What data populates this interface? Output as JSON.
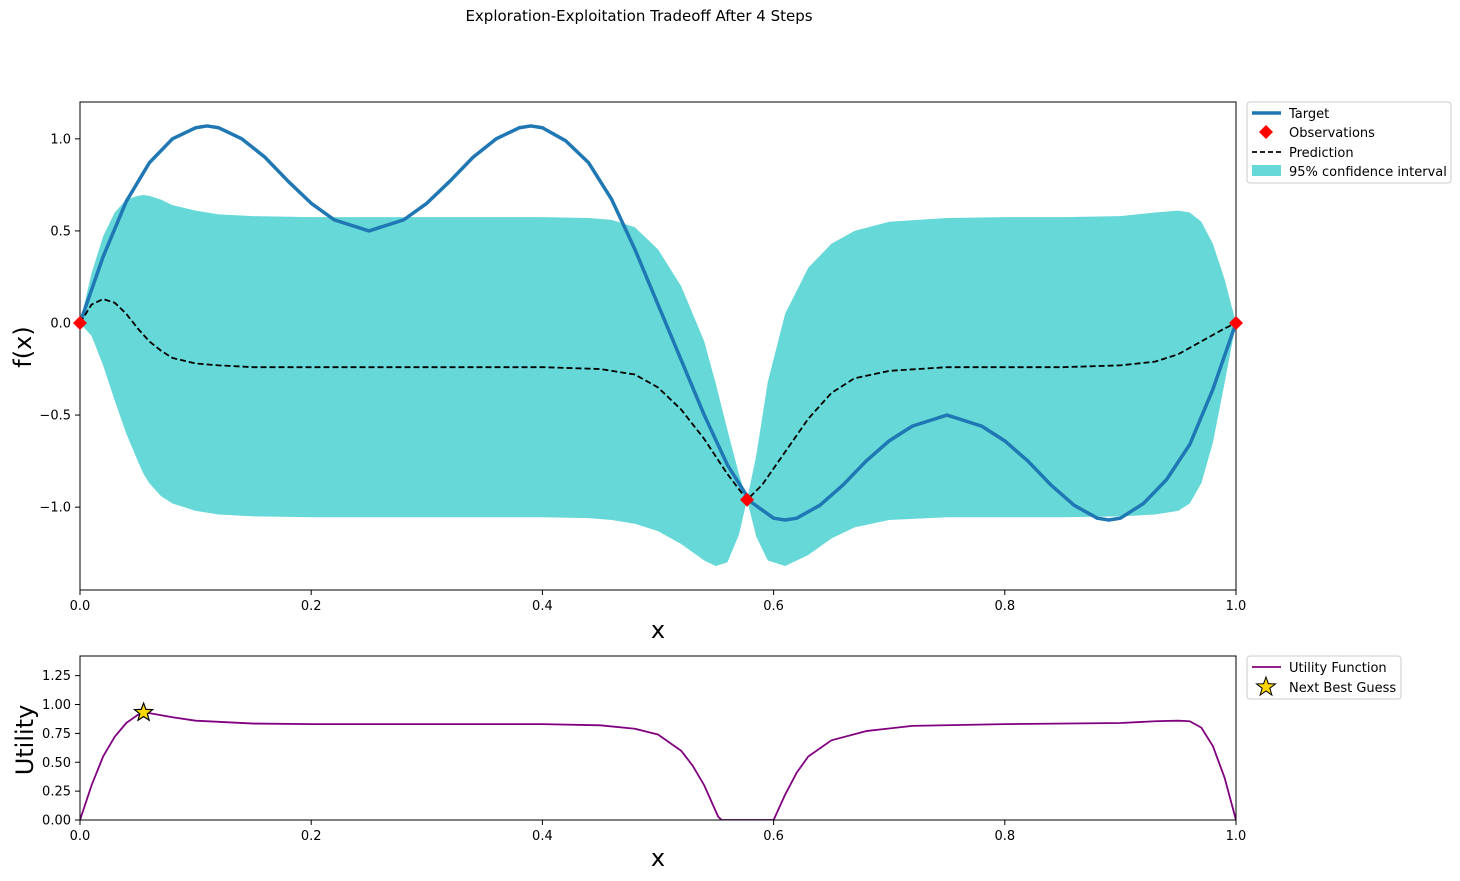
{
  "figure": {
    "title": "Exploration-Exploitation Tradeoff After 4 Steps"
  },
  "chart_data": [
    {
      "type": "line",
      "xlabel": "x",
      "ylabel": "f(x)",
      "xlim": [
        0,
        1
      ],
      "ylim": [
        -1.45,
        1.2
      ],
      "xticks": [
        0.0,
        0.2,
        0.4,
        0.6,
        0.8,
        1.0
      ],
      "xtick_labels": [
        "0.0",
        "0.2",
        "0.4",
        "0.6",
        "0.8",
        "1.0"
      ],
      "yticks": [
        -1.0,
        -0.5,
        0.0,
        0.5,
        1.0
      ],
      "ytick_labels": [
        "−1.0",
        "−0.5",
        "0.0",
        "0.5",
        "1.0"
      ],
      "grid": false,
      "legend": "outside-top-right",
      "series": [
        {
          "name": "Target",
          "style": "solid",
          "color": "#1f77b4",
          "x": [
            0,
            0.02,
            0.04,
            0.06,
            0.08,
            0.1,
            0.11,
            0.12,
            0.14,
            0.16,
            0.18,
            0.2,
            0.22,
            0.25,
            0.28,
            0.3,
            0.32,
            0.34,
            0.36,
            0.38,
            0.39,
            0.4,
            0.42,
            0.44,
            0.46,
            0.48,
            0.5,
            0.52,
            0.54,
            0.56,
            0.58,
            0.6,
            0.61,
            0.62,
            0.64,
            0.66,
            0.68,
            0.7,
            0.72,
            0.75,
            0.78,
            0.8,
            0.82,
            0.84,
            0.86,
            0.88,
            0.89,
            0.9,
            0.92,
            0.94,
            0.96,
            0.98,
            1.0
          ],
          "y": [
            0,
            0.36,
            0.66,
            0.87,
            1.0,
            1.06,
            1.07,
            1.06,
            1.0,
            0.9,
            0.77,
            0.65,
            0.56,
            0.5,
            0.56,
            0.65,
            0.77,
            0.9,
            1.0,
            1.06,
            1.07,
            1.06,
            0.99,
            0.87,
            0.67,
            0.4,
            0.1,
            -0.2,
            -0.5,
            -0.77,
            -0.97,
            -1.06,
            -1.07,
            -1.06,
            -0.99,
            -0.88,
            -0.75,
            -0.64,
            -0.56,
            -0.5,
            -0.56,
            -0.64,
            -0.75,
            -0.88,
            -0.99,
            -1.06,
            -1.07,
            -1.06,
            -0.98,
            -0.85,
            -0.66,
            -0.36,
            0
          ]
        },
        {
          "name": "Observations",
          "style": "marker-diamond",
          "color": "#ff0000",
          "x": [
            0.0,
            0.577,
            1.0
          ],
          "y": [
            0.0,
            -0.96,
            0.0
          ]
        },
        {
          "name": "Prediction",
          "style": "dashed",
          "color": "#000000",
          "x": [
            0,
            0.01,
            0.02,
            0.03,
            0.04,
            0.05,
            0.06,
            0.07,
            0.08,
            0.1,
            0.12,
            0.15,
            0.2,
            0.3,
            0.4,
            0.45,
            0.48,
            0.5,
            0.52,
            0.54,
            0.56,
            0.577,
            0.59,
            0.61,
            0.63,
            0.65,
            0.67,
            0.7,
            0.75,
            0.8,
            0.85,
            0.9,
            0.93,
            0.95,
            0.97,
            0.99,
            1.0
          ],
          "y": [
            0,
            0.1,
            0.13,
            0.11,
            0.05,
            -0.03,
            -0.1,
            -0.15,
            -0.19,
            -0.22,
            -0.23,
            -0.24,
            -0.24,
            -0.24,
            -0.24,
            -0.25,
            -0.28,
            -0.35,
            -0.47,
            -0.63,
            -0.82,
            -0.96,
            -0.88,
            -0.7,
            -0.52,
            -0.38,
            -0.3,
            -0.26,
            -0.24,
            -0.24,
            -0.24,
            -0.23,
            -0.21,
            -0.17,
            -0.1,
            -0.03,
            0
          ]
        },
        {
          "name": "95% confidence interval",
          "style": "band",
          "color": "#66d8d8",
          "x": [
            0,
            0.01,
            0.02,
            0.03,
            0.04,
            0.05,
            0.055,
            0.06,
            0.07,
            0.08,
            0.1,
            0.12,
            0.15,
            0.2,
            0.3,
            0.4,
            0.44,
            0.46,
            0.48,
            0.5,
            0.52,
            0.54,
            0.55,
            0.56,
            0.57,
            0.577,
            0.585,
            0.595,
            0.61,
            0.63,
            0.65,
            0.67,
            0.7,
            0.75,
            0.8,
            0.85,
            0.9,
            0.93,
            0.95,
            0.96,
            0.97,
            0.98,
            0.99,
            1.0
          ],
          "upper": [
            0,
            0.27,
            0.47,
            0.6,
            0.67,
            0.69,
            0.695,
            0.69,
            0.67,
            0.64,
            0.61,
            0.59,
            0.58,
            0.575,
            0.575,
            0.575,
            0.57,
            0.56,
            0.52,
            0.4,
            0.2,
            -0.1,
            -0.33,
            -0.58,
            -0.82,
            -0.96,
            -0.72,
            -0.32,
            0.05,
            0.3,
            0.43,
            0.5,
            0.55,
            0.57,
            0.575,
            0.575,
            0.58,
            0.6,
            0.61,
            0.6,
            0.55,
            0.43,
            0.24,
            0
          ],
          "lower": [
            0,
            -0.07,
            -0.23,
            -0.42,
            -0.6,
            -0.75,
            -0.82,
            -0.87,
            -0.94,
            -0.98,
            -1.02,
            -1.04,
            -1.05,
            -1.055,
            -1.055,
            -1.055,
            -1.06,
            -1.07,
            -1.09,
            -1.13,
            -1.2,
            -1.29,
            -1.32,
            -1.3,
            -1.15,
            -0.96,
            -1.16,
            -1.29,
            -1.32,
            -1.26,
            -1.17,
            -1.11,
            -1.07,
            -1.055,
            -1.055,
            -1.055,
            -1.05,
            -1.04,
            -1.02,
            -0.98,
            -0.87,
            -0.65,
            -0.33,
            0
          ]
        }
      ]
    },
    {
      "type": "line",
      "xlabel": "x",
      "ylabel": "Utility",
      "xlim": [
        0,
        1
      ],
      "ylim": [
        0,
        1.42
      ],
      "xticks": [
        0.0,
        0.2,
        0.4,
        0.6,
        0.8,
        1.0
      ],
      "xtick_labels": [
        "0.0",
        "0.2",
        "0.4",
        "0.6",
        "0.8",
        "1.0"
      ],
      "yticks": [
        0.0,
        0.25,
        0.5,
        0.75,
        1.0,
        1.25
      ],
      "ytick_labels": [
        "0.00",
        "0.25",
        "0.50",
        "0.75",
        "1.00",
        "1.25"
      ],
      "grid": false,
      "legend": "outside-top-right",
      "series": [
        {
          "name": "Utility Function",
          "style": "solid",
          "color": "#800080",
          "x": [
            0,
            0.01,
            0.02,
            0.03,
            0.04,
            0.05,
            0.055,
            0.06,
            0.08,
            0.1,
            0.15,
            0.2,
            0.3,
            0.4,
            0.45,
            0.48,
            0.5,
            0.52,
            0.53,
            0.54,
            0.548,
            0.552,
            0.555,
            0.6,
            0.61,
            0.62,
            0.63,
            0.65,
            0.68,
            0.72,
            0.8,
            0.9,
            0.93,
            0.95,
            0.96,
            0.97,
            0.98,
            0.99,
            1.0
          ],
          "y": [
            0,
            0.3,
            0.55,
            0.72,
            0.84,
            0.91,
            0.93,
            0.925,
            0.89,
            0.86,
            0.835,
            0.83,
            0.83,
            0.83,
            0.82,
            0.79,
            0.74,
            0.6,
            0.47,
            0.3,
            0.12,
            0.03,
            0,
            0,
            0.22,
            0.41,
            0.55,
            0.69,
            0.77,
            0.815,
            0.83,
            0.84,
            0.855,
            0.86,
            0.855,
            0.8,
            0.64,
            0.37,
            0
          ]
        },
        {
          "name": "Next Best Guess",
          "style": "marker-star",
          "color": "#ffd700",
          "x": [
            0.055
          ],
          "y": [
            0.93
          ]
        }
      ]
    }
  ]
}
